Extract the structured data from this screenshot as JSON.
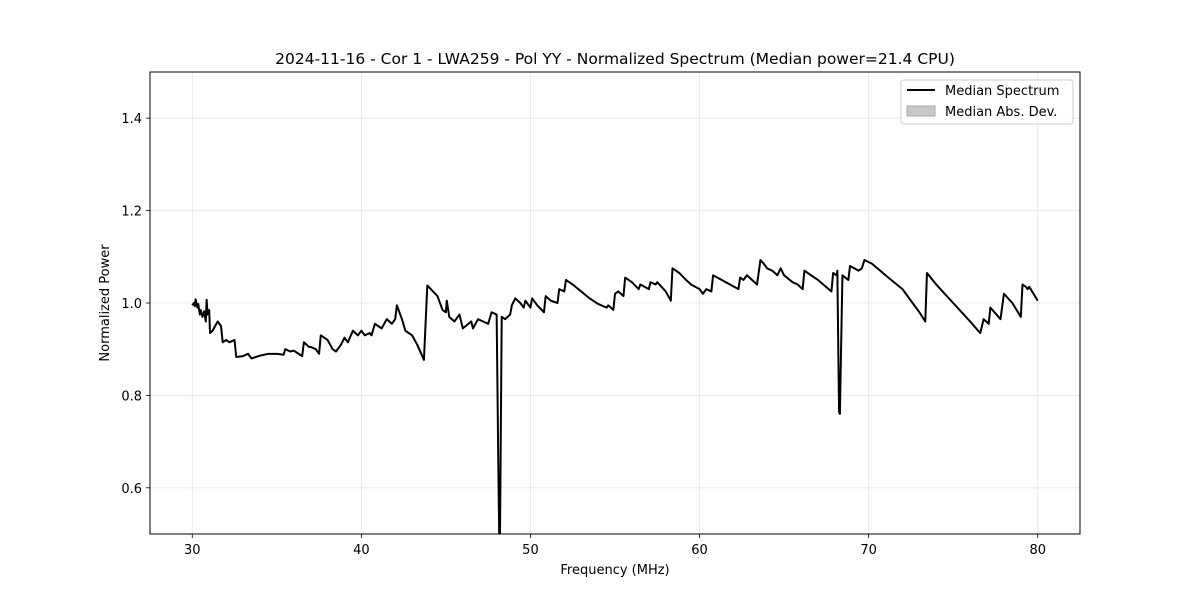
{
  "chart_data": {
    "type": "line",
    "title": "2024-11-16 - Cor 1 - LWA259 - Pol YY - Normalized Spectrum (Median power=21.4 CPU)",
    "xlabel": "Frequency (MHz)",
    "ylabel": "Normalized Power",
    "xlim": [
      27.5,
      82.5
    ],
    "ylim": [
      0.5,
      1.5
    ],
    "x_ticks": [
      30,
      40,
      50,
      60,
      70,
      80
    ],
    "y_ticks": [
      0.6,
      0.8,
      1.0,
      1.2,
      1.4
    ],
    "x_tick_labels": [
      "30",
      "40",
      "50",
      "60",
      "70",
      "80"
    ],
    "y_tick_labels": [
      "0.6",
      "0.8",
      "1.0",
      "1.2",
      "1.4"
    ],
    "grid": true,
    "legend_position": "top-right",
    "legend": [
      {
        "label": "Median Spectrum",
        "kind": "line",
        "color": "#000000"
      },
      {
        "label": "Median Abs. Dev.",
        "kind": "patch",
        "color": "#c8c8c8"
      }
    ],
    "series": [
      {
        "name": "Median Spectrum",
        "color": "#000000",
        "points": [
          [
            30.0,
            0.995
          ],
          [
            30.1,
            1.0
          ],
          [
            30.15,
            0.993
          ],
          [
            30.2,
            1.008
          ],
          [
            30.3,
            0.99
          ],
          [
            30.35,
            0.998
          ],
          [
            30.45,
            0.975
          ],
          [
            30.5,
            0.985
          ],
          [
            30.6,
            0.97
          ],
          [
            30.7,
            0.982
          ],
          [
            30.8,
            0.96
          ],
          [
            30.85,
            1.007
          ],
          [
            30.9,
            0.975
          ],
          [
            31.0,
            0.985
          ],
          [
            31.05,
            0.935
          ],
          [
            31.2,
            0.94
          ],
          [
            31.5,
            0.96
          ],
          [
            31.7,
            0.95
          ],
          [
            31.8,
            0.915
          ],
          [
            32.0,
            0.92
          ],
          [
            32.2,
            0.915
          ],
          [
            32.5,
            0.92
          ],
          [
            32.6,
            0.883
          ],
          [
            33.0,
            0.885
          ],
          [
            33.3,
            0.89
          ],
          [
            33.5,
            0.88
          ],
          [
            34.0,
            0.886
          ],
          [
            34.5,
            0.89
          ],
          [
            35.0,
            0.89
          ],
          [
            35.4,
            0.888
          ],
          [
            35.5,
            0.9
          ],
          [
            35.8,
            0.895
          ],
          [
            36.0,
            0.897
          ],
          [
            36.5,
            0.885
          ],
          [
            36.6,
            0.915
          ],
          [
            36.9,
            0.905
          ],
          [
            37.0,
            0.905
          ],
          [
            37.3,
            0.9
          ],
          [
            37.5,
            0.89
          ],
          [
            37.6,
            0.93
          ],
          [
            38.0,
            0.92
          ],
          [
            38.3,
            0.9
          ],
          [
            38.5,
            0.895
          ],
          [
            38.8,
            0.91
          ],
          [
            39.0,
            0.925
          ],
          [
            39.2,
            0.915
          ],
          [
            39.5,
            0.94
          ],
          [
            39.8,
            0.93
          ],
          [
            40.0,
            0.94
          ],
          [
            40.2,
            0.93
          ],
          [
            40.5,
            0.935
          ],
          [
            40.6,
            0.93
          ],
          [
            40.8,
            0.955
          ],
          [
            41.2,
            0.945
          ],
          [
            41.5,
            0.965
          ],
          [
            41.8,
            0.955
          ],
          [
            42.0,
            0.965
          ],
          [
            42.1,
            0.995
          ],
          [
            42.4,
            0.965
          ],
          [
            42.6,
            0.94
          ],
          [
            43.0,
            0.93
          ],
          [
            43.3,
            0.91
          ],
          [
            43.7,
            0.877
          ],
          [
            43.9,
            1.038
          ],
          [
            44.5,
            1.015
          ],
          [
            44.8,
            0.985
          ],
          [
            45.0,
            0.98
          ],
          [
            45.05,
            1.005
          ],
          [
            45.2,
            0.97
          ],
          [
            45.5,
            0.96
          ],
          [
            45.8,
            0.975
          ],
          [
            46.0,
            0.945
          ],
          [
            46.5,
            0.96
          ],
          [
            46.6,
            0.945
          ],
          [
            46.9,
            0.965
          ],
          [
            47.2,
            0.96
          ],
          [
            47.5,
            0.955
          ],
          [
            47.7,
            0.98
          ],
          [
            48.0,
            0.975
          ],
          [
            48.1,
            0.65
          ],
          [
            48.15,
            0.5
          ],
          [
            48.2,
            0.5
          ],
          [
            48.3,
            0.97
          ],
          [
            48.5,
            0.965
          ],
          [
            48.8,
            0.975
          ],
          [
            48.9,
            0.995
          ],
          [
            49.1,
            1.01
          ],
          [
            49.4,
            1.0
          ],
          [
            49.6,
            0.99
          ],
          [
            49.7,
            1.005
          ],
          [
            50.0,
            0.99
          ],
          [
            50.1,
            1.01
          ],
          [
            50.4,
            0.995
          ],
          [
            50.8,
            0.98
          ],
          [
            50.9,
            1.015
          ],
          [
            51.2,
            1.005
          ],
          [
            51.6,
            1.0
          ],
          [
            51.7,
            1.03
          ],
          [
            52.0,
            1.025
          ],
          [
            52.1,
            1.05
          ],
          [
            52.5,
            1.04
          ],
          [
            53.0,
            1.025
          ],
          [
            53.5,
            1.01
          ],
          [
            54.0,
            0.998
          ],
          [
            54.5,
            0.99
          ],
          [
            54.6,
            0.995
          ],
          [
            54.9,
            0.985
          ],
          [
            55.0,
            1.02
          ],
          [
            55.2,
            1.025
          ],
          [
            55.5,
            1.015
          ],
          [
            55.6,
            1.055
          ],
          [
            56.0,
            1.045
          ],
          [
            56.4,
            1.03
          ],
          [
            56.5,
            1.04
          ],
          [
            57.0,
            1.03
          ],
          [
            57.1,
            1.045
          ],
          [
            57.4,
            1.04
          ],
          [
            57.5,
            1.045
          ],
          [
            58.0,
            1.025
          ],
          [
            58.3,
            1.005
          ],
          [
            58.4,
            1.075
          ],
          [
            58.8,
            1.065
          ],
          [
            59.2,
            1.05
          ],
          [
            59.5,
            1.04
          ],
          [
            60.0,
            1.03
          ],
          [
            60.2,
            1.02
          ],
          [
            60.4,
            1.03
          ],
          [
            60.7,
            1.025
          ],
          [
            60.8,
            1.06
          ],
          [
            61.3,
            1.05
          ],
          [
            61.8,
            1.04
          ],
          [
            62.3,
            1.03
          ],
          [
            62.4,
            1.055
          ],
          [
            62.6,
            1.05
          ],
          [
            62.8,
            1.06
          ],
          [
            63.4,
            1.04
          ],
          [
            63.6,
            1.093
          ],
          [
            63.8,
            1.085
          ],
          [
            64.0,
            1.075
          ],
          [
            64.3,
            1.07
          ],
          [
            64.6,
            1.06
          ],
          [
            64.8,
            1.075
          ],
          [
            65.0,
            1.06
          ],
          [
            65.5,
            1.045
          ],
          [
            65.8,
            1.04
          ],
          [
            66.1,
            1.03
          ],
          [
            66.2,
            1.07
          ],
          [
            67.0,
            1.05
          ],
          [
            67.8,
            1.025
          ],
          [
            67.9,
            1.065
          ],
          [
            68.1,
            1.06
          ],
          [
            68.15,
            1.07
          ],
          [
            68.25,
            0.765
          ],
          [
            68.3,
            0.76
          ],
          [
            68.45,
            1.06
          ],
          [
            68.8,
            1.05
          ],
          [
            68.9,
            1.08
          ],
          [
            69.4,
            1.07
          ],
          [
            69.6,
            1.075
          ],
          [
            69.75,
            1.093
          ],
          [
            70.2,
            1.085
          ],
          [
            71.0,
            1.06
          ],
          [
            72.0,
            1.03
          ],
          [
            73.0,
            0.98
          ],
          [
            73.35,
            0.96
          ],
          [
            73.45,
            1.065
          ],
          [
            74.0,
            1.04
          ],
          [
            75.0,
            1.0
          ],
          [
            76.0,
            0.96
          ],
          [
            76.6,
            0.935
          ],
          [
            76.8,
            0.965
          ],
          [
            77.1,
            0.955
          ],
          [
            77.2,
            0.99
          ],
          [
            77.8,
            0.965
          ],
          [
            78.0,
            1.02
          ],
          [
            78.5,
            1.0
          ],
          [
            79.0,
            0.97
          ],
          [
            79.1,
            1.04
          ],
          [
            79.3,
            1.035
          ],
          [
            79.4,
            1.03
          ],
          [
            79.5,
            1.035
          ],
          [
            80.0,
            1.005
          ]
        ]
      }
    ]
  }
}
